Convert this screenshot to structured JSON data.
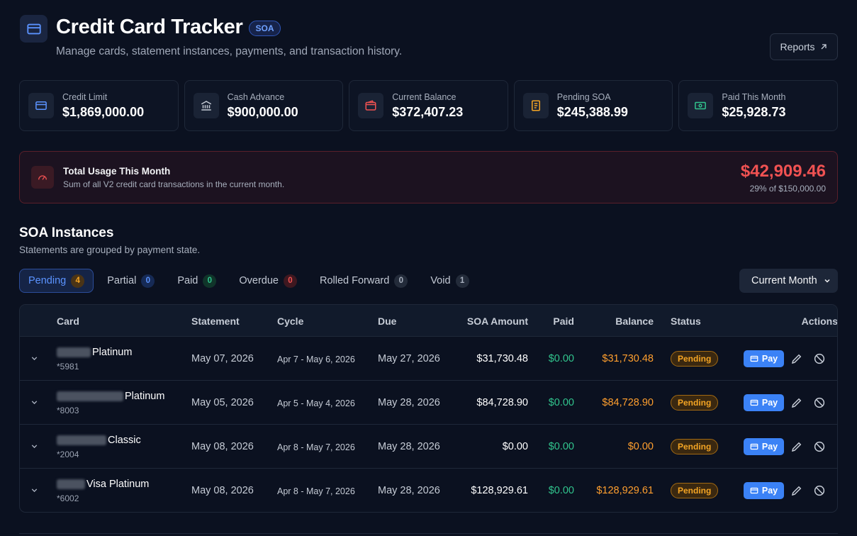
{
  "header": {
    "title": "Credit Card Tracker",
    "badge": "SOA",
    "subtitle": "Manage cards, statement instances, payments, and transaction history.",
    "reports_label": "Reports",
    "icon": "credit-card-icon"
  },
  "stats": [
    {
      "label": "Credit Limit",
      "value": "$1,869,000.00",
      "icon": "credit-card-icon",
      "color": "#5b93ff"
    },
    {
      "label": "Cash Advance",
      "value": "$900,000.00",
      "icon": "bank-icon",
      "color": "#c6ccd6"
    },
    {
      "label": "Current Balance",
      "value": "$372,407.23",
      "icon": "wallet-icon",
      "color": "#f05252"
    },
    {
      "label": "Pending SOA",
      "value": "$245,388.99",
      "icon": "receipt-icon",
      "color": "#f5a524"
    },
    {
      "label": "Paid This Month",
      "value": "$25,928.73",
      "icon": "cash-icon",
      "color": "#31c48d"
    }
  ],
  "usage": {
    "title": "Total Usage This Month",
    "subtitle": "Sum of all V2 credit card transactions in the current month.",
    "amount": "$42,909.46",
    "of_limit": "29% of $150,000.00",
    "icon": "gauge-icon"
  },
  "section": {
    "title": "SOA Instances",
    "subtitle": "Statements are grouped by payment state."
  },
  "tabs": [
    {
      "label": "Pending",
      "count": "4",
      "active": true
    },
    {
      "label": "Partial",
      "count": "0"
    },
    {
      "label": "Paid",
      "count": "0"
    },
    {
      "label": "Overdue",
      "count": "0"
    },
    {
      "label": "Rolled Forward",
      "count": "0"
    },
    {
      "label": "Void",
      "count": "1"
    }
  ],
  "month_filter": {
    "selected": "Current Month"
  },
  "table": {
    "columns": [
      "Card",
      "Statement",
      "Cycle",
      "Due",
      "SOA Amount",
      "Paid",
      "Balance",
      "Status",
      "Actions"
    ],
    "rows": [
      {
        "card_suffix": "Platinum",
        "card_number": "*5981",
        "statement": "May 07, 2026",
        "cycle": "Apr 7 - May 6, 2026",
        "due": "May 27, 2026",
        "soa_amount": "$31,730.48",
        "paid": "$0.00",
        "balance": "$31,730.48",
        "status": "Pending",
        "pay_label": "Pay"
      },
      {
        "card_suffix": "Platinum",
        "card_number": "*8003",
        "statement": "May 05, 2026",
        "cycle": "Apr 5 - May 4, 2026",
        "due": "May 28, 2026",
        "soa_amount": "$84,728.90",
        "paid": "$0.00",
        "balance": "$84,728.90",
        "status": "Pending",
        "pay_label": "Pay"
      },
      {
        "card_suffix": "Classic",
        "card_number": "*2004",
        "statement": "May 08, 2026",
        "cycle": "Apr 8 - May 7, 2026",
        "due": "May 28, 2026",
        "soa_amount": "$0.00",
        "paid": "$0.00",
        "balance": "$0.00",
        "status": "Pending",
        "pay_label": "Pay"
      },
      {
        "card_suffix": "Visa Platinum",
        "card_number": "*6002",
        "statement": "May 08, 2026",
        "cycle": "Apr 8 - May 7, 2026",
        "due": "May 28, 2026",
        "soa_amount": "$128,929.61",
        "paid": "$0.00",
        "balance": "$128,929.61",
        "status": "Pending",
        "pay_label": "Pay"
      }
    ]
  }
}
